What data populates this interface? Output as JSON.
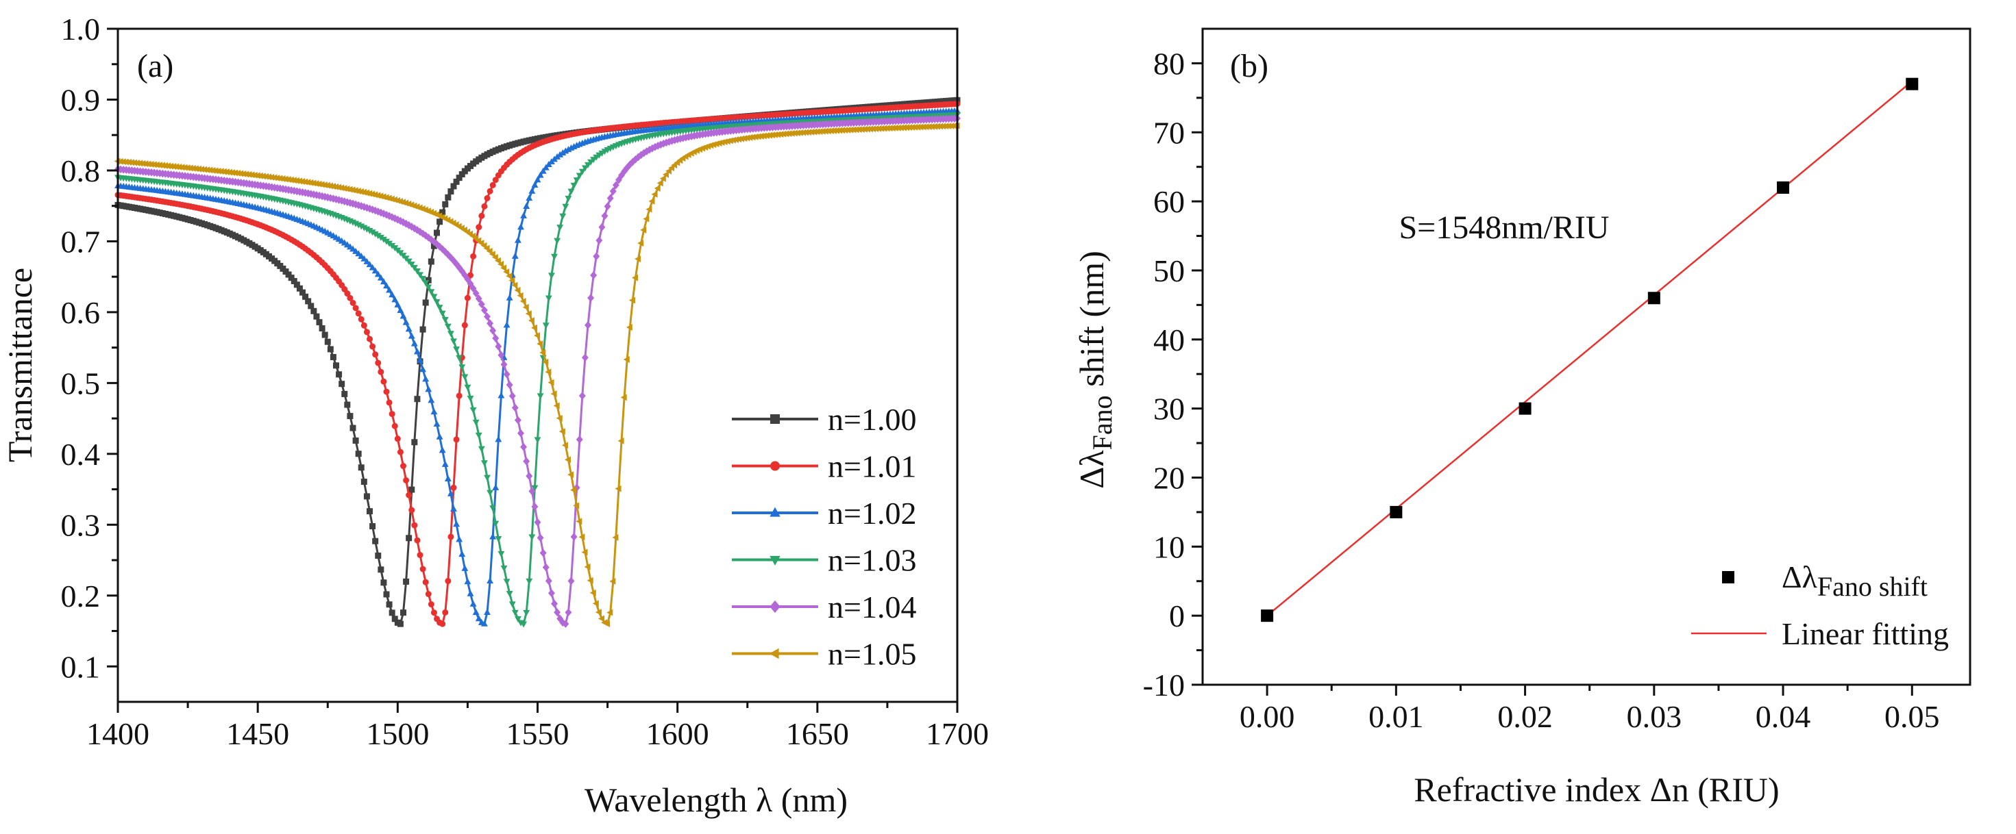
{
  "chart_data": [
    {
      "panel": "(a)",
      "type": "line",
      "xlabel": "Wavelength λ (nm)",
      "ylabel": "Transmittance",
      "xlim": [
        1400,
        1700
      ],
      "ylim": [
        0.05,
        1.0
      ],
      "xticks": [
        1400,
        1450,
        1500,
        1550,
        1600,
        1650,
        1700
      ],
      "yticks": [
        0.1,
        0.2,
        0.3,
        0.4,
        0.5,
        0.6,
        0.7,
        0.8,
        0.9,
        1.0
      ],
      "xtick_labels": [
        "1400",
        "1450",
        "1500",
        "1550",
        "1600",
        "1650",
        "1700"
      ],
      "ytick_labels": [
        "0.1",
        "0.2",
        "0.3",
        "0.4",
        "0.5",
        "0.6",
        "0.7",
        "0.8",
        "0.9",
        "1.0"
      ],
      "legend_position": "bottom-right",
      "series": [
        {
          "name": "n=1.00",
          "color": "#404040",
          "marker": "square",
          "resonance_nm": 1501,
          "min_transmittance": 0.16,
          "t_at_1400": 0.77,
          "plateau": 0.85,
          "t_at_1700": 0.9
        },
        {
          "name": "n=1.01",
          "color": "#e8312f",
          "marker": "circle",
          "resonance_nm": 1516,
          "min_transmittance": 0.16,
          "t_at_1400": 0.78,
          "plateau": 0.86,
          "t_at_1700": 0.895
        },
        {
          "name": "n=1.02",
          "color": "#1f6fd6",
          "marker": "triangle-up",
          "resonance_nm": 1531,
          "min_transmittance": 0.16,
          "t_at_1400": 0.79,
          "plateau": 0.86,
          "t_at_1700": 0.885
        },
        {
          "name": "n=1.03",
          "color": "#2ca56a",
          "marker": "triangle-down",
          "resonance_nm": 1545,
          "min_transmittance": 0.16,
          "t_at_1400": 0.8,
          "plateau": 0.86,
          "t_at_1700": 0.88
        },
        {
          "name": "n=1.04",
          "color": "#b268d6",
          "marker": "diamond",
          "resonance_nm": 1560,
          "min_transmittance": 0.16,
          "t_at_1400": 0.81,
          "plateau": 0.86,
          "t_at_1700": 0.875
        },
        {
          "name": "n=1.05",
          "color": "#c9950e",
          "marker": "triangle-left",
          "resonance_nm": 1575,
          "min_transmittance": 0.16,
          "t_at_1400": 0.82,
          "plateau": 0.855,
          "t_at_1700": 0.865
        }
      ]
    },
    {
      "panel": "(b)",
      "type": "scatter",
      "xlabel": "Refractive index Δn (RIU)",
      "ylabel_main": "Δλ",
      "ylabel_sub": "Fano",
      "ylabel_rest": " shift (nm)",
      "xlim": [
        -0.005,
        0.0545
      ],
      "ylim": [
        -10,
        85
      ],
      "xticks": [
        0.0,
        0.01,
        0.02,
        0.03,
        0.04,
        0.05
      ],
      "yticks": [
        -10,
        0,
        10,
        20,
        30,
        40,
        50,
        60,
        70,
        80
      ],
      "xtick_labels": [
        "0.00",
        "0.01",
        "0.02",
        "0.03",
        "0.04",
        "0.05"
      ],
      "ytick_labels": [
        "-10",
        "0",
        "10",
        "20",
        "30",
        "40",
        "50",
        "60",
        "70",
        "80"
      ],
      "annotation": "S=1548nm/RIU",
      "legend_position": "bottom-right",
      "series": [
        {
          "name_main": "Δλ",
          "name_sub": "Fano shift",
          "type": "scatter",
          "marker": "square",
          "color": "#000000",
          "x": [
            0.0,
            0.01,
            0.02,
            0.03,
            0.04,
            0.05
          ],
          "y": [
            0,
            15,
            30,
            46,
            62,
            77
          ]
        },
        {
          "name": "Linear fitting",
          "type": "line",
          "color": "#e8312f",
          "slope": 1548,
          "intercept": 0
        }
      ]
    }
  ]
}
